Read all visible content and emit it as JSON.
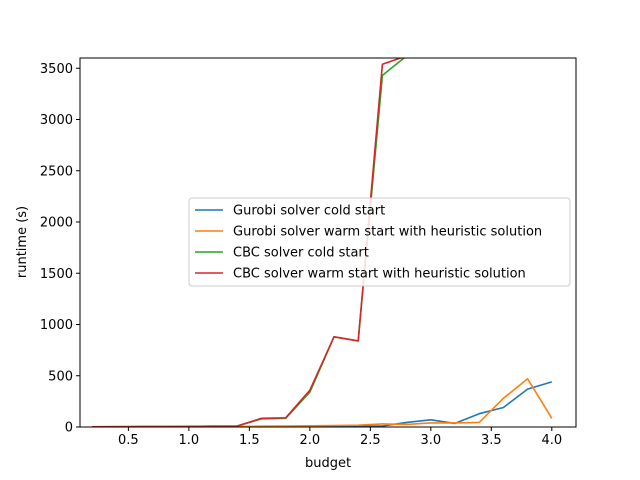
{
  "chart_data": {
    "type": "line",
    "xlabel": "budget",
    "ylabel": "runtime (s)",
    "xlim": [
      0.1,
      4.2
    ],
    "ylim": [
      0,
      3600
    ],
    "xticks": [
      0.5,
      1.0,
      1.5,
      2.0,
      2.5,
      3.0,
      3.5,
      4.0
    ],
    "xtick_labels": [
      "0.5",
      "1.0",
      "1.5",
      "2.0",
      "2.5",
      "3.0",
      "3.5",
      "4.0"
    ],
    "yticks": [
      0,
      500,
      1000,
      1500,
      2000,
      2500,
      3000,
      3500
    ],
    "ytick_labels": [
      "0",
      "500",
      "1000",
      "1500",
      "2000",
      "2500",
      "3000",
      "3500"
    ],
    "grid": false,
    "legend_position": "center-right",
    "series": [
      {
        "name": "Gurobi solver cold start",
        "color": "#1f77b4",
        "x": [
          0.2,
          0.4,
          0.6,
          0.8,
          1.0,
          1.2,
          1.4,
          1.6,
          1.8,
          2.0,
          2.2,
          2.4,
          2.6,
          2.8,
          3.0,
          3.2,
          3.4,
          3.6,
          3.8,
          4.0
        ],
        "y": [
          1,
          1,
          1,
          1,
          1,
          1,
          2,
          2,
          3,
          5,
          6,
          8,
          10,
          45,
          70,
          35,
          130,
          190,
          370,
          440
        ]
      },
      {
        "name": "Gurobi solver warm start with heuristic solution",
        "color": "#ff7f0e",
        "x": [
          0.2,
          0.4,
          0.6,
          0.8,
          1.0,
          1.2,
          1.4,
          1.6,
          1.8,
          2.0,
          2.2,
          2.4,
          2.6,
          2.8,
          3.0,
          3.2,
          3.4,
          3.6,
          3.8,
          4.0
        ],
        "y": [
          1,
          1,
          1,
          1,
          2,
          3,
          5,
          8,
          10,
          12,
          15,
          18,
          30,
          25,
          40,
          40,
          45,
          280,
          470,
          85
        ]
      },
      {
        "name": "CBC solver cold start",
        "color": "#2ca02c",
        "x": [
          0.2,
          0.4,
          0.6,
          0.8,
          1.0,
          1.2,
          1.4,
          1.6,
          1.8,
          2.0,
          2.2,
          2.4,
          2.6,
          2.8
        ],
        "y": [
          2,
          3,
          4,
          5,
          6,
          8,
          10,
          80,
          85,
          340,
          880,
          840,
          3430,
          3620
        ]
      },
      {
        "name": "CBC solver warm start with heuristic solution",
        "color": "#d62728",
        "x": [
          0.2,
          0.4,
          0.6,
          0.8,
          1.0,
          1.2,
          1.4,
          1.6,
          1.8,
          2.0,
          2.2,
          2.4,
          2.6,
          2.8
        ],
        "y": [
          2,
          3,
          4,
          5,
          6,
          8,
          10,
          85,
          90,
          360,
          880,
          840,
          3540,
          3620
        ]
      }
    ]
  }
}
